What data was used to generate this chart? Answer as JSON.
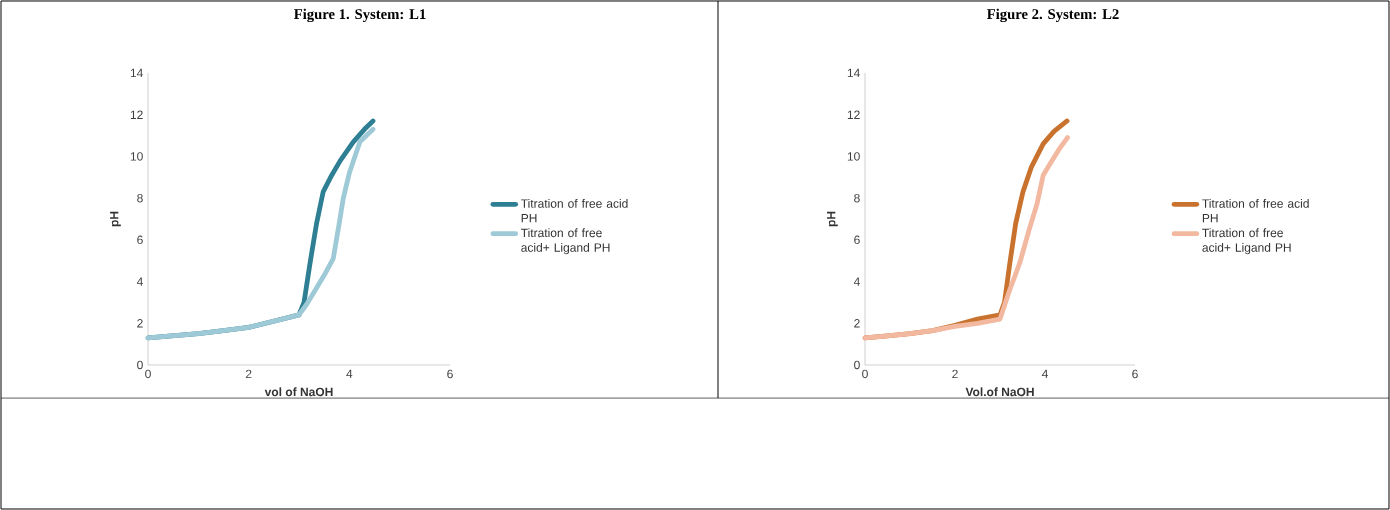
{
  "chart_data": [
    {
      "type": "line",
      "title": "Figure 1. System: L1",
      "xlabel": "vol of NaOH",
      "ylabel": "pH",
      "xlim": [
        0,
        6
      ],
      "ylim": [
        0,
        14
      ],
      "xticks": [
        0,
        2,
        4,
        6
      ],
      "yticks": [
        0,
        2,
        4,
        6,
        8,
        10,
        12,
        14
      ],
      "legend": "right",
      "grid": false,
      "marker": "none",
      "series": [
        {
          "name": "Titration of free acid PH",
          "color": "#2e7f93",
          "x": [
            0,
            0.5,
            1,
            1.5,
            2,
            2.5,
            3,
            3.1,
            3.22,
            3.35,
            3.48,
            3.65,
            3.82,
            4.08,
            4.3,
            4.47
          ],
          "values": [
            1.3,
            1.4,
            1.5,
            1.65,
            1.8,
            2.1,
            2.4,
            3.0,
            4.9,
            6.8,
            8.3,
            9.1,
            9.8,
            10.7,
            11.3,
            11.7
          ]
        },
        {
          "name": "Titration of free acid+ Ligand PH",
          "color": "#9ec9d6",
          "x": [
            0,
            0.5,
            1,
            1.5,
            2,
            2.5,
            3,
            3.15,
            3.3,
            3.5,
            3.68,
            3.8,
            3.88,
            4.0,
            4.21,
            4.47
          ],
          "values": [
            1.3,
            1.4,
            1.5,
            1.65,
            1.8,
            2.1,
            2.4,
            2.9,
            3.5,
            4.3,
            5.1,
            6.8,
            8.0,
            9.2,
            10.7,
            11.3
          ]
        }
      ]
    },
    {
      "type": "line",
      "title": "Figure 2. System: L2",
      "xlabel": "Vol.of NaOH",
      "ylabel": "pH",
      "xlim": [
        0,
        6
      ],
      "ylim": [
        0,
        14
      ],
      "xticks": [
        0,
        2,
        4,
        6
      ],
      "yticks": [
        0,
        2,
        4,
        6,
        8,
        10,
        12,
        14
      ],
      "legend": "right",
      "grid": false,
      "marker": "none",
      "series": [
        {
          "name": "Titration of free acid PH",
          "color": "#c8722e",
          "x": [
            0,
            0.5,
            1,
            1.5,
            2,
            2.5,
            3,
            3.1,
            3.22,
            3.35,
            3.51,
            3.7,
            3.96,
            4.2,
            4.49
          ],
          "values": [
            1.3,
            1.4,
            1.5,
            1.65,
            1.9,
            2.2,
            2.4,
            3.0,
            4.9,
            6.8,
            8.3,
            9.5,
            10.6,
            11.2,
            11.7
          ]
        },
        {
          "name": "Titration of free acid+ Ligand PH",
          "color": "#f2b8a0",
          "x": [
            0,
            0.5,
            1,
            1.5,
            2,
            2.5,
            3,
            3.2,
            3.44,
            3.65,
            3.82,
            3.96,
            4.1,
            4.3,
            4.5
          ],
          "values": [
            1.3,
            1.4,
            1.5,
            1.65,
            1.85,
            2.0,
            2.2,
            3.5,
            4.9,
            6.5,
            7.7,
            9.1,
            9.6,
            10.3,
            10.9
          ]
        }
      ]
    }
  ]
}
